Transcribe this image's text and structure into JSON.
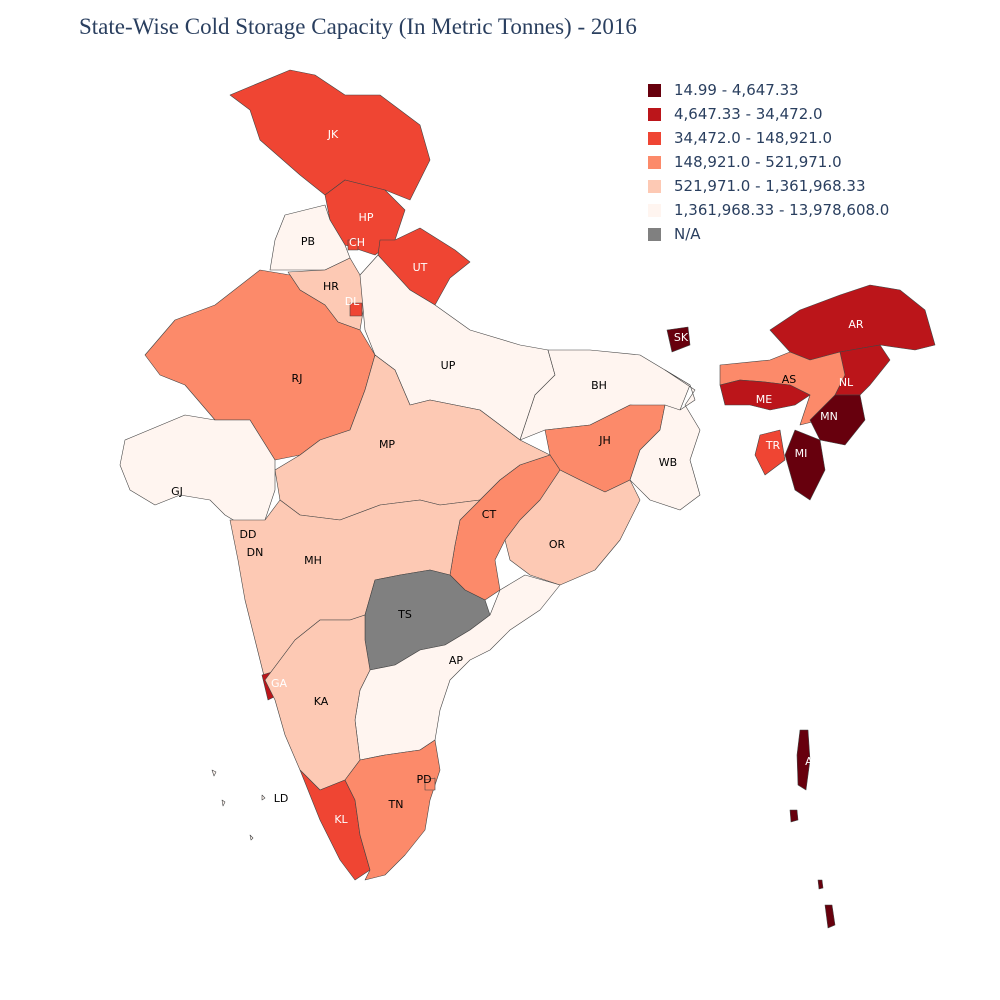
{
  "title": "State-Wise Cold Storage Capacity (In Metric Tonnes) - 2016",
  "legend": [
    {
      "label": "14.99 - 4,647.33",
      "color": "#67000d"
    },
    {
      "label": "4,647.33 - 34,472.0",
      "color": "#bb151a"
    },
    {
      "label": "34,472.0 - 148,921.0",
      "color": "#ef4533"
    },
    {
      "label": "148,921.0 - 521,971.0",
      "color": "#fc8a6a"
    },
    {
      "label": "521,971.0 - 1,361,968.33",
      "color": "#fdc9b4"
    },
    {
      "label": "1,361,968.33 - 13,978,608.0",
      "color": "#fff5f0"
    },
    {
      "label": "N/A",
      "color": "#808080"
    }
  ],
  "states": [
    {
      "code": "JK",
      "bin": 2
    },
    {
      "code": "HP",
      "bin": 2
    },
    {
      "code": "PB",
      "bin": 5
    },
    {
      "code": "CH",
      "bin": 2
    },
    {
      "code": "UT",
      "bin": 2
    },
    {
      "code": "HR",
      "bin": 4
    },
    {
      "code": "DL",
      "bin": 2
    },
    {
      "code": "RJ",
      "bin": 3
    },
    {
      "code": "UP",
      "bin": 5
    },
    {
      "code": "BH",
      "bin": 5
    },
    {
      "code": "SK",
      "bin": 0
    },
    {
      "code": "AR",
      "bin": 1
    },
    {
      "code": "AS",
      "bin": 3
    },
    {
      "code": "NL",
      "bin": 1
    },
    {
      "code": "ME",
      "bin": 1
    },
    {
      "code": "MN",
      "bin": 0
    },
    {
      "code": "TR",
      "bin": 2
    },
    {
      "code": "MI",
      "bin": 0
    },
    {
      "code": "MP",
      "bin": 4
    },
    {
      "code": "JH",
      "bin": 3
    },
    {
      "code": "WB",
      "bin": 5
    },
    {
      "code": "GJ",
      "bin": 5
    },
    {
      "code": "DD",
      "bin": 6
    },
    {
      "code": "DN",
      "bin": 6
    },
    {
      "code": "CT",
      "bin": 3
    },
    {
      "code": "OR",
      "bin": 4
    },
    {
      "code": "MH",
      "bin": 4
    },
    {
      "code": "TS",
      "bin": 6
    },
    {
      "code": "AP",
      "bin": 5
    },
    {
      "code": "GA",
      "bin": 1
    },
    {
      "code": "KA",
      "bin": 4
    },
    {
      "code": "KL",
      "bin": 2
    },
    {
      "code": "TN",
      "bin": 3
    },
    {
      "code": "PD",
      "bin": 3
    },
    {
      "code": "LD",
      "bin": 5
    },
    {
      "code": "AN",
      "bin": 0
    }
  ]
}
